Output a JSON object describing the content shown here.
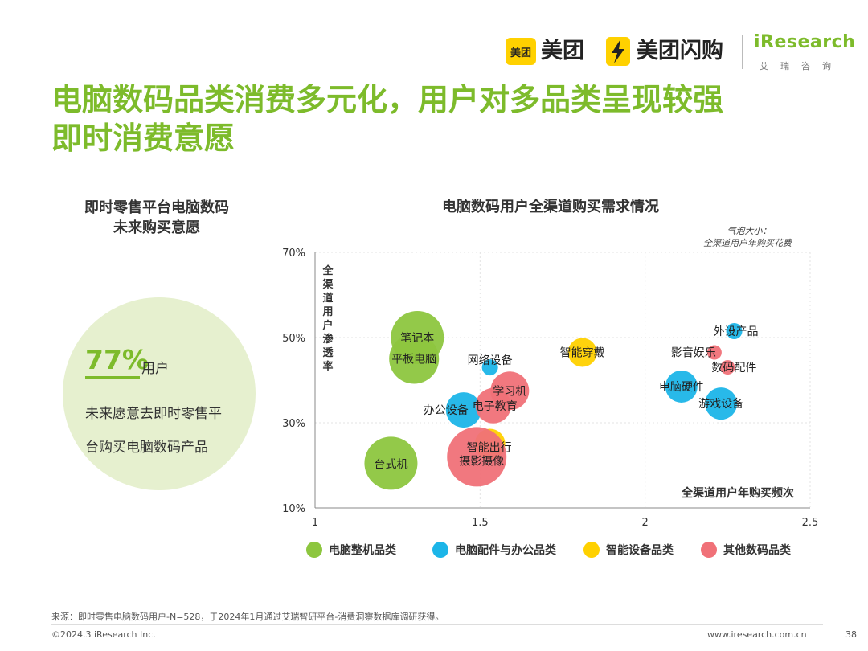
{
  "header": {
    "meituan_box": "美团",
    "meituan": "美团",
    "shangou": "美团闪购",
    "iresearch": "iResearch",
    "iresearch_cn": "艾瑞咨询"
  },
  "title": {
    "line1": "电脑数码品类消费多元化，用户对多品类呈现较强",
    "line2": "即时消费意愿"
  },
  "left_panel": {
    "heading_line1": "即时零售平台电脑数码",
    "heading_line2": "未来购买意愿",
    "percent": "77%",
    "percent_unit": "用户",
    "desc_line1": "未来愿意去即时零售平",
    "desc_line2": "台购买电脑数码产品"
  },
  "colors": {
    "green": "#8DC63F",
    "blue": "#1CB5E8",
    "yellow": "#FFD100",
    "red": "#F07178",
    "title": "#7DBB2B"
  },
  "chart_data": {
    "type": "bubble",
    "title": "电脑数码用户全渠道购买需求情况",
    "bubble_note_line1": "气泡大小：",
    "bubble_note_line2": "全渠道用户年购买花费",
    "xlabel": "全渠道用户年购买频次",
    "ylabel": "全渠道用户渗透率",
    "xlim": [
      1,
      2.5
    ],
    "ylim": [
      10,
      70
    ],
    "x_ticks": [
      "1",
      "1.5",
      "2",
      "2.5"
    ],
    "x_tick_values": [
      1,
      1.5,
      2,
      2.5
    ],
    "y_ticks": [
      "70%",
      "50%",
      "30%",
      "10%"
    ],
    "y_tick_values": [
      70,
      50,
      30,
      10
    ],
    "legend": [
      {
        "name": "电脑整机品类",
        "color": "#8DC63F"
      },
      {
        "name": "电脑配件与办公品类",
        "color": "#1CB5E8"
      },
      {
        "name": "智能设备品类",
        "color": "#FFD100"
      },
      {
        "name": "其他数码品类",
        "color": "#F07178"
      }
    ],
    "points": [
      {
        "label": "笔记本",
        "x": 1.31,
        "y": 50,
        "size": 33,
        "group": 0
      },
      {
        "label": "平板电脑",
        "x": 1.3,
        "y": 45,
        "size": 31,
        "group": 0
      },
      {
        "label": "台式机",
        "x": 1.23,
        "y": 20.5,
        "size": 33,
        "group": 0
      },
      {
        "label": "网络设备",
        "x": 1.53,
        "y": 43,
        "size": 10,
        "group": 1
      },
      {
        "label": "办公设备",
        "x": 1.45,
        "y": 33,
        "size": 22,
        "group": 1
      },
      {
        "label": "电脑硬件",
        "x": 2.11,
        "y": 38.5,
        "size": 20,
        "group": 1
      },
      {
        "label": "游戏设备",
        "x": 2.23,
        "y": 34.5,
        "size": 20,
        "group": 1
      },
      {
        "label": "外设产品",
        "x": 2.27,
        "y": 51.5,
        "size": 10,
        "group": 1
      },
      {
        "label": "智能穿戴",
        "x": 1.81,
        "y": 46.5,
        "size": 18,
        "group": 2
      },
      {
        "label": "智能出行",
        "x": 1.53,
        "y": 25,
        "size": 19,
        "group": 2
      },
      {
        "label": "学习机",
        "x": 1.59,
        "y": 37.5,
        "size": 24,
        "group": 3
      },
      {
        "label": "电子教育",
        "x": 1.54,
        "y": 34,
        "size": 22,
        "group": 3
      },
      {
        "label": "摄影摄像",
        "x": 1.49,
        "y": 22,
        "size": 37,
        "group": 3
      },
      {
        "label": "影音娱乐",
        "x": 2.21,
        "y": 46.5,
        "size": 9,
        "group": 3
      },
      {
        "label": "数码配件",
        "x": 2.25,
        "y": 43,
        "size": 9,
        "group": 3
      }
    ]
  },
  "footer": {
    "source": "来源：即时零售电脑数码用户-N=528，于2024年1月通过艾瑞智研平台-消费洞察数据库调研获得。",
    "copyright": "©2024.3 iResearch Inc.",
    "site": "www.iresearch.com.cn",
    "page": "38"
  }
}
